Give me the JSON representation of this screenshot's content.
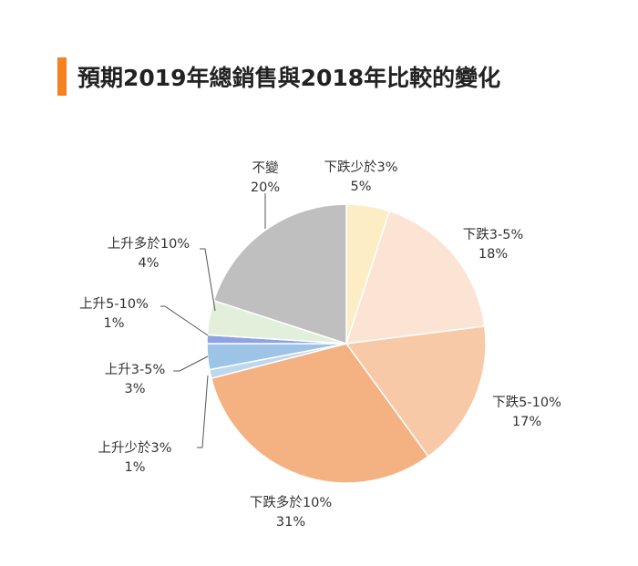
{
  "chart_data": {
    "type": "pie",
    "title": "預期2019年總銷售與2018年比較的變化",
    "accent_color": "#f58220",
    "slices": [
      {
        "label": "下跌少於3%",
        "value": 5,
        "value_label": "5%",
        "color": "#fdedc4"
      },
      {
        "label": "下跌3-5%",
        "value": 18,
        "value_label": "18%",
        "color": "#fce4d4"
      },
      {
        "label": "下跌5-10%",
        "value": 17,
        "value_label": "17%",
        "color": "#f8c9a7"
      },
      {
        "label": "下跌多於10%",
        "value": 31,
        "value_label": "31%",
        "color": "#f4b283"
      },
      {
        "label": "上升少於3%",
        "value": 1,
        "value_label": "1%",
        "color": "#bdd7ee"
      },
      {
        "label": "上升3-5%",
        "value": 3,
        "value_label": "3%",
        "color": "#9dc3e6"
      },
      {
        "label": "上升5-10%",
        "value": 1,
        "value_label": "1%",
        "color": "#8fa3e3"
      },
      {
        "label": "上升多於10%",
        "value": 4,
        "value_label": "4%",
        "color": "#e2efda"
      },
      {
        "label": "不變",
        "value": 20,
        "value_label": "20%",
        "color": "#bfbfbf"
      }
    ]
  }
}
